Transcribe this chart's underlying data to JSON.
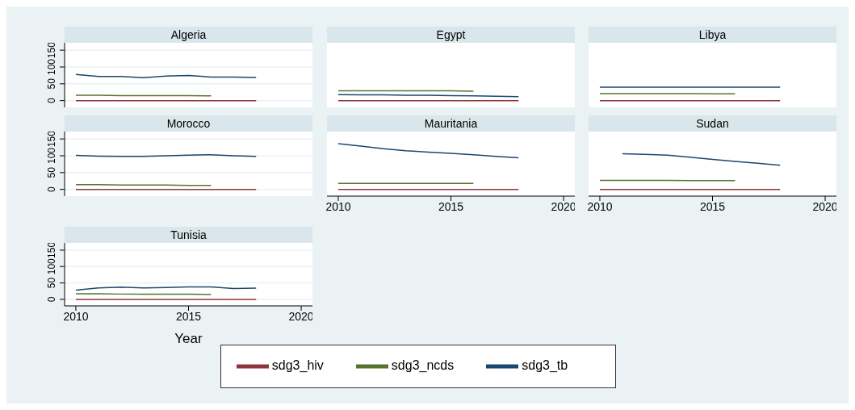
{
  "chart_data": [
    {
      "type": "line",
      "title": "Algeria",
      "x": [
        2010,
        2011,
        2012,
        2013,
        2014,
        2015,
        2016,
        2017,
        2018
      ],
      "xlim": [
        2009.5,
        2020.5
      ],
      "xticks": [
        2010,
        2015,
        2020
      ],
      "ylim": [
        -20,
        172
      ],
      "yticks": [
        0,
        50,
        100,
        150
      ],
      "grid": "y",
      "tick_labels": "y",
      "series": [
        {
          "color": "#1a476f",
          "values": [
            78,
            72,
            72,
            68,
            73,
            75,
            70,
            70,
            69
          ]
        },
        {
          "color": "#90353b",
          "values": [
            0,
            0,
            0,
            0,
            0,
            0,
            0,
            0,
            0
          ]
        },
        {
          "color": "#55752f",
          "values": [
            16,
            16,
            15,
            15,
            15,
            15,
            14,
            null,
            null
          ]
        }
      ]
    },
    {
      "type": "line",
      "title": "Egypt",
      "x": [
        2010,
        2011,
        2012,
        2013,
        2014,
        2015,
        2016,
        2017,
        2018
      ],
      "xlim": [
        2009.5,
        2020.5
      ],
      "xticks": [
        2010,
        2015,
        2020
      ],
      "ylim": [
        -20,
        172
      ],
      "yticks": [
        0,
        50,
        100,
        150
      ],
      "grid": "y",
      "tick_labels": false,
      "series": [
        {
          "color": "#1a476f",
          "values": [
            18,
            17,
            17,
            16,
            16,
            15,
            14,
            13,
            12
          ]
        },
        {
          "color": "#90353b",
          "values": [
            0,
            0,
            0,
            0,
            0,
            0,
            0,
            0,
            0
          ]
        },
        {
          "color": "#55752f",
          "values": [
            29,
            29,
            29,
            29,
            29,
            29,
            28,
            null,
            null
          ]
        }
      ]
    },
    {
      "type": "line",
      "title": "Libya",
      "x": [
        2010,
        2011,
        2012,
        2013,
        2014,
        2015,
        2016,
        2017,
        2018
      ],
      "xlim": [
        2009.5,
        2020.5
      ],
      "xticks": [
        2010,
        2015,
        2020
      ],
      "ylim": [
        -20,
        172
      ],
      "yticks": [
        0,
        50,
        100,
        150
      ],
      "grid": "y",
      "tick_labels": false,
      "series": [
        {
          "color": "#1a476f",
          "values": [
            40,
            40,
            40,
            40,
            40,
            40,
            40,
            40,
            40
          ]
        },
        {
          "color": "#90353b",
          "values": [
            0,
            0,
            0,
            0,
            0,
            0,
            0,
            0,
            0
          ]
        },
        {
          "color": "#55752f",
          "values": [
            21,
            21,
            21,
            21,
            21,
            20,
            20,
            null,
            null
          ]
        }
      ]
    },
    {
      "type": "line",
      "title": "Morocco",
      "x": [
        2010,
        2011,
        2012,
        2013,
        2014,
        2015,
        2016,
        2017,
        2018
      ],
      "xlim": [
        2009.5,
        2020.5
      ],
      "xticks": [
        2010,
        2015,
        2020
      ],
      "ylim": [
        -20,
        172
      ],
      "yticks": [
        0,
        50,
        100,
        150
      ],
      "grid": "y",
      "tick_labels": "y",
      "series": [
        {
          "color": "#1a476f",
          "values": [
            101,
            99,
            98,
            98,
            100,
            102,
            103,
            100,
            98
          ]
        },
        {
          "color": "#90353b",
          "values": [
            0,
            0,
            0,
            0,
            0,
            0,
            0,
            0,
            0
          ]
        },
        {
          "color": "#55752f",
          "values": [
            14,
            14,
            13,
            13,
            13,
            12,
            12,
            null,
            null
          ]
        }
      ]
    },
    {
      "type": "line",
      "title": "Mauritania",
      "x": [
        2010,
        2011,
        2012,
        2013,
        2014,
        2015,
        2016,
        2017,
        2018
      ],
      "xlim": [
        2009.5,
        2020.5
      ],
      "xticks": [
        2010,
        2015,
        2020
      ],
      "ylim": [
        -20,
        172
      ],
      "yticks": [
        0,
        50,
        100,
        150
      ],
      "grid": "y",
      "tick_labels": "x",
      "series": [
        {
          "color": "#1a476f",
          "values": [
            136,
            129,
            121,
            115,
            111,
            107,
            103,
            98,
            94
          ]
        },
        {
          "color": "#90353b",
          "values": [
            0,
            0,
            0,
            0,
            0,
            0,
            0,
            0,
            0
          ]
        },
        {
          "color": "#55752f",
          "values": [
            18,
            18,
            18,
            18,
            18,
            18,
            18,
            null,
            null
          ]
        }
      ]
    },
    {
      "type": "line",
      "title": "Sudan",
      "x": [
        2010,
        2011,
        2012,
        2013,
        2014,
        2015,
        2016,
        2017,
        2018
      ],
      "xlim": [
        2009.5,
        2020.5
      ],
      "xticks": [
        2010,
        2015,
        2020
      ],
      "ylim": [
        -20,
        172
      ],
      "yticks": [
        0,
        50,
        100,
        150
      ],
      "grid": "y",
      "tick_labels": "x",
      "series": [
        {
          "color": "#1a476f",
          "values": [
            null,
            106,
            104,
            102,
            96,
            89,
            83,
            78,
            72
          ]
        },
        {
          "color": "#90353b",
          "values": [
            0,
            0,
            0,
            0,
            0,
            0,
            0,
            0,
            0
          ]
        },
        {
          "color": "#55752f",
          "values": [
            27,
            27,
            27,
            27,
            26,
            26,
            26,
            null,
            null
          ]
        }
      ]
    },
    {
      "type": "line",
      "title": "Tunisia",
      "xlabel": "Year",
      "legend": "bottom",
      "x": [
        2010,
        2011,
        2012,
        2013,
        2014,
        2015,
        2016,
        2017,
        2018
      ],
      "xlim": [
        2009.5,
        2020.5
      ],
      "xticks": [
        2010,
        2015,
        2020
      ],
      "ylim": [
        -20,
        172
      ],
      "yticks": [
        0,
        50,
        100,
        150
      ],
      "grid": "y",
      "series": [
        {
          "name": "sdg3_tb",
          "color": "#1a476f",
          "values": [
            28,
            35,
            37,
            35,
            36,
            38,
            38,
            33,
            34
          ]
        },
        {
          "name": "sdg3_hiv",
          "color": "#90353b",
          "values": [
            0,
            0,
            0,
            0,
            0,
            0,
            0,
            0,
            0
          ]
        },
        {
          "name": "sdg3_ncds",
          "color": "#55752f",
          "values": [
            17,
            17,
            16,
            16,
            16,
            16,
            15,
            null,
            null
          ]
        }
      ]
    }
  ]
}
